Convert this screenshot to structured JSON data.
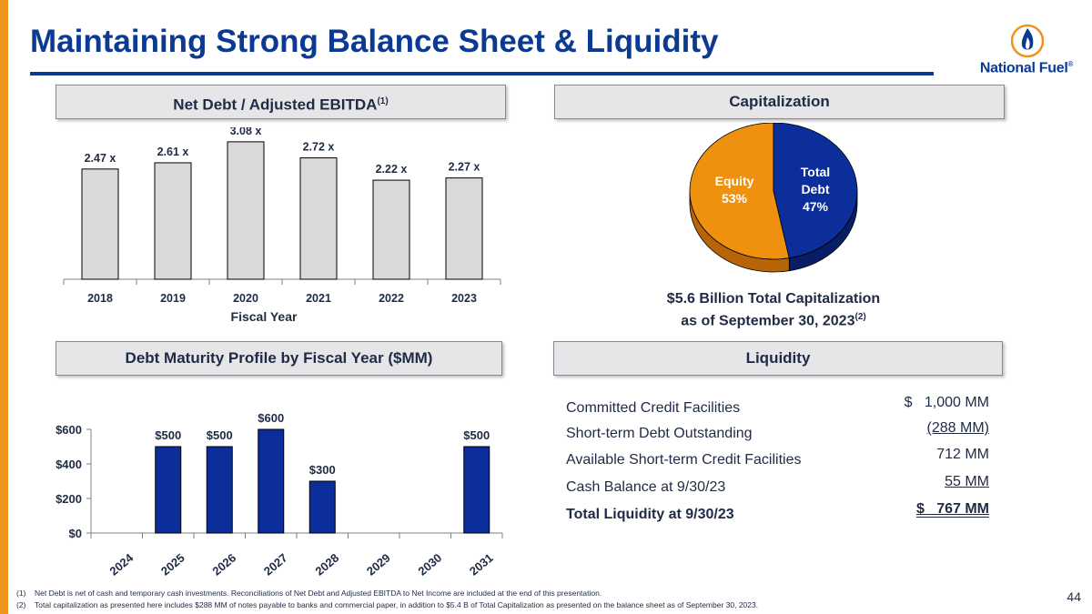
{
  "slide": {
    "title": "Maintaining Strong Balance Sheet & Liquidity",
    "page_number": "44",
    "logo_text": "National Fuel",
    "logo_mark": "®"
  },
  "sections": {
    "net_debt": {
      "title": "Net Debt / Adjusted EBITDA",
      "sup": "(1)"
    },
    "capitalization": {
      "title": "Capitalization"
    },
    "debt_maturity": {
      "title": "Debt Maturity Profile by Fiscal Year ($MM)"
    },
    "liquidity": {
      "title": "Liquidity"
    }
  },
  "chart_data": [
    {
      "id": "net_debt_ebitda",
      "type": "bar",
      "categories": [
        "2018",
        "2019",
        "2020",
        "2021",
        "2022",
        "2023"
      ],
      "values": [
        2.47,
        2.61,
        3.08,
        2.72,
        2.22,
        2.27
      ],
      "data_labels": [
        "2.47 x",
        "2.61 x",
        "3.08 x",
        "2.72 x",
        "2.22 x",
        "2.27 x"
      ],
      "xlabel": "Fiscal Year",
      "ylabel": "",
      "ylim": [
        0,
        3.2
      ],
      "bar_color": "#d9d9d9"
    },
    {
      "id": "capitalization",
      "type": "pie",
      "labels": [
        "Equity",
        "Total Debt"
      ],
      "values": [
        53,
        47
      ],
      "label_lines": [
        [
          "Equity",
          "53%"
        ],
        [
          "Total",
          "Debt",
          "47%"
        ]
      ],
      "colors": [
        "#f0900f",
        "#0b2e9a"
      ],
      "caption_line1": "$5.6 Billion Total Capitalization",
      "caption_line2": "as of September 30, 2023",
      "caption_sup": "(2)"
    },
    {
      "id": "debt_maturity",
      "type": "bar",
      "categories": [
        "2024",
        "2025",
        "2026",
        "2027",
        "2028",
        "2029",
        "2030",
        "2031"
      ],
      "values": [
        0,
        500,
        500,
        600,
        300,
        0,
        0,
        500
      ],
      "data_labels": [
        "",
        "$500",
        "$500",
        "$600",
        "$300",
        "",
        "",
        "$500"
      ],
      "ytick_labels": [
        "$0",
        "$200",
        "$400",
        "$600"
      ],
      "yticks": [
        0,
        200,
        400,
        600
      ],
      "ylim": [
        0,
        600
      ],
      "xlabel": "",
      "ylabel": "",
      "bar_color": "#0b2e9a"
    }
  ],
  "liquidity": {
    "rows": [
      {
        "label": "Committed Credit Facilities",
        "value": "$   1,000 MM",
        "style": "plain"
      },
      {
        "label": "Short-term Debt Outstanding",
        "value": "(288 MM)",
        "style": "underline"
      },
      {
        "label": "Available Short-term Credit Facilities",
        "value": "712 MM",
        "style": "plain"
      },
      {
        "label": "Cash Balance at 9/30/23",
        "value": "55 MM",
        "style": "underline"
      },
      {
        "label": "Total Liquidity at 9/30/23",
        "value": "$   767 MM",
        "style": "double"
      }
    ]
  },
  "footnotes": [
    {
      "num": "(1)",
      "text": "Net Debt is net of cash and temporary cash investments.  Reconciliations of Net Debt and Adjusted EBITDA to Net Income are included at the end of this presentation."
    },
    {
      "num": "(2)",
      "text": "Total capitalization as presented here includes $288 MM of notes payable to banks and commercial paper, in addition to $5.4 B of Total Capitalization as presented on the balance sheet as of September 30, 2023."
    }
  ]
}
